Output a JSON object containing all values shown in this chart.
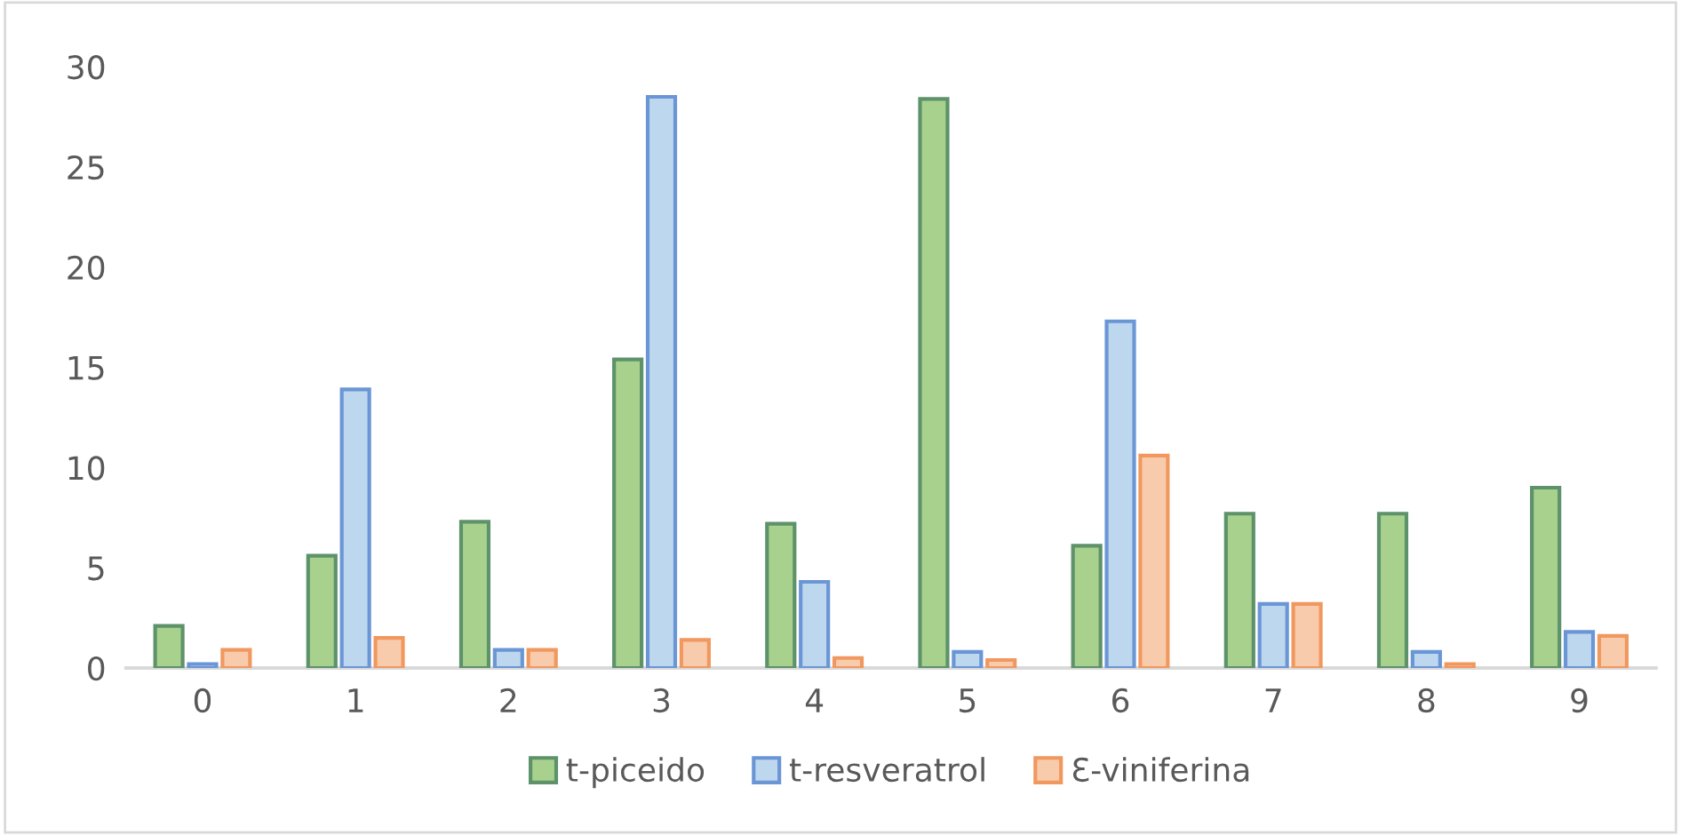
{
  "chart_data": {
    "type": "bar",
    "categories": [
      "0",
      "1",
      "2",
      "3",
      "4",
      "5",
      "6",
      "7",
      "8",
      "9"
    ],
    "series": [
      {
        "name": "t-piceido",
        "color": "#a9d18e",
        "values": [
          2.1,
          5.6,
          7.3,
          15.4,
          7.2,
          28.4,
          6.1,
          7.7,
          7.7,
          9.0
        ]
      },
      {
        "name": "t-resveratrol",
        "color": "#bdd7ee",
        "values": [
          0.2,
          13.9,
          0.9,
          28.5,
          4.3,
          0.8,
          17.3,
          3.2,
          0.8,
          1.8
        ]
      },
      {
        "name": "Ɛ-viniferina",
        "color": "#f8cbad",
        "values": [
          0.9,
          1.5,
          0.9,
          1.4,
          0.5,
          0.4,
          10.6,
          3.2,
          0.2,
          1.6
        ]
      }
    ],
    "ylim": [
      0,
      30
    ],
    "yticks": [
      0,
      5,
      10,
      15,
      20,
      25,
      30
    ],
    "grid": false,
    "legend": "bottom"
  }
}
